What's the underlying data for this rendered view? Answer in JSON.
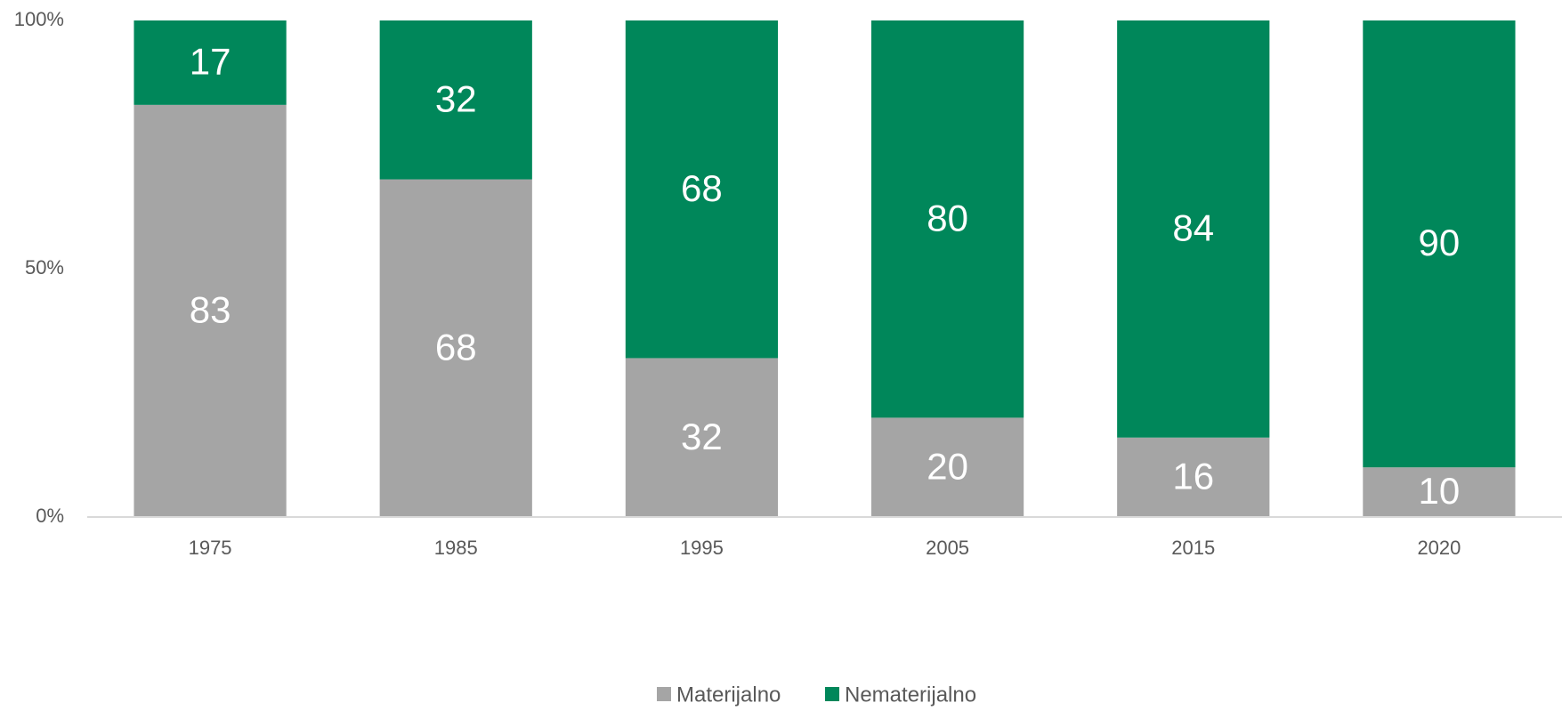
{
  "chart_data": {
    "type": "stacked_bar",
    "categories": [
      "1975",
      "1985",
      "1995",
      "2005",
      "2015",
      "2020"
    ],
    "series": [
      {
        "name": "Materijalno",
        "color": "#a5a5a5",
        "values": [
          83,
          68,
          32,
          20,
          16,
          10
        ]
      },
      {
        "name": "Nematerijalno",
        "color": "#00875a",
        "values": [
          17,
          32,
          68,
          80,
          84,
          90
        ]
      }
    ],
    "ylim": [
      0,
      100
    ],
    "yticks": [
      {
        "value": 0,
        "label": "0%"
      },
      {
        "value": 50,
        "label": "50%"
      },
      {
        "value": 100,
        "label": "100%"
      }
    ],
    "grid": false,
    "legend": "bottom"
  }
}
